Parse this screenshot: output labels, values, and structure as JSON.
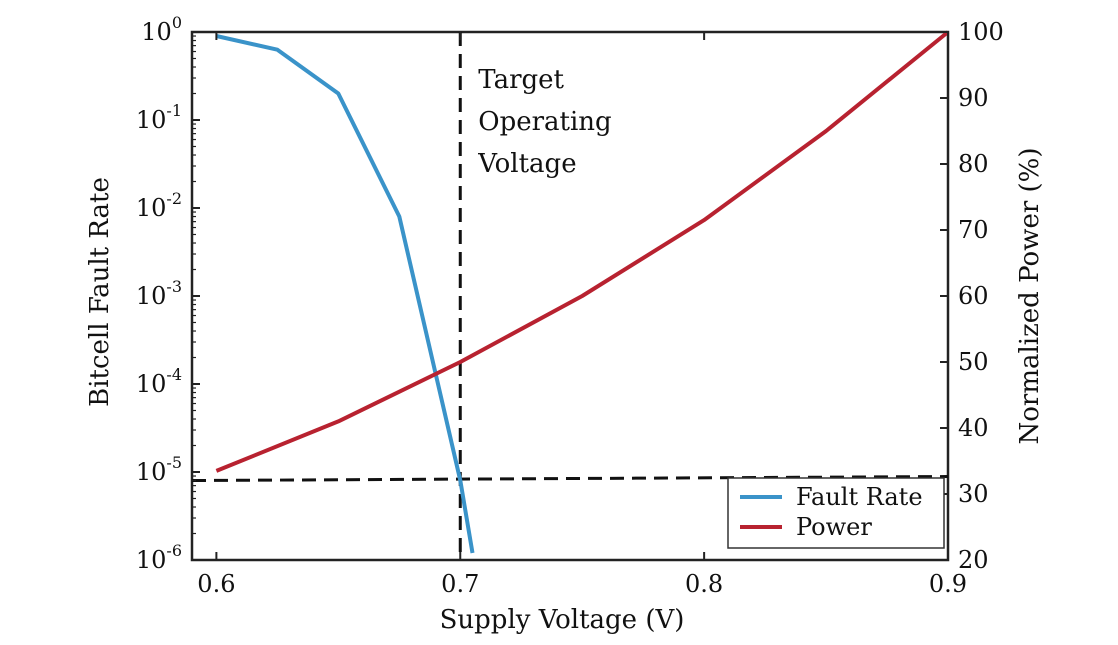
{
  "chart_data": {
    "type": "line",
    "xlabel": "Supply Voltage (V)",
    "ylabel_left": "Bitcell Fault Rate",
    "ylabel_right": "Normalized Power (%)",
    "xlim": [
      0.59,
      0.9
    ],
    "x_ticks": [
      0.6,
      0.7,
      0.8,
      0.9
    ],
    "x_tick_labels": [
      "0.6",
      "0.7",
      "0.8",
      "0.9"
    ],
    "y_left_scale": "log",
    "y_left_lim": [
      1e-06,
      1
    ],
    "y_left_ticks": [
      {
        "base": "10",
        "exp": "0"
      },
      {
        "base": "10",
        "exp": "-1"
      },
      {
        "base": "10",
        "exp": "-2"
      },
      {
        "base": "10",
        "exp": "-3"
      },
      {
        "base": "10",
        "exp": "-4"
      },
      {
        "base": "10",
        "exp": "-5"
      },
      {
        "base": "10",
        "exp": "-6"
      }
    ],
    "y_right_lim": [
      20,
      100
    ],
    "y_right_ticks": [
      20,
      30,
      40,
      50,
      60,
      70,
      80,
      90,
      100
    ],
    "series": [
      {
        "name": "Fault Rate",
        "axis": "left",
        "color": "#3a93c9",
        "x": [
          0.6,
          0.625,
          0.65,
          0.675,
          0.7,
          0.705
        ],
        "y": [
          0.9,
          0.63,
          0.2,
          0.008,
          8e-06,
          1.2e-06
        ]
      },
      {
        "name": "Power",
        "axis": "right",
        "color": "#b82230",
        "x": [
          0.6,
          0.65,
          0.7,
          0.75,
          0.8,
          0.85,
          0.9
        ],
        "y": [
          33.5,
          41,
          50,
          60,
          71.5,
          85,
          100
        ]
      }
    ],
    "annotations": [
      {
        "text_lines": [
          "Target",
          "Operating",
          "Voltage"
        ],
        "x": 0.7
      }
    ],
    "reference_lines": [
      {
        "orientation": "vertical",
        "x": 0.7,
        "style": "dashed"
      },
      {
        "orientation": "horizontal",
        "y": 8e-06,
        "axis": "left",
        "style": "dashed"
      }
    ],
    "legend_position": "bottom-right",
    "grid": false
  }
}
